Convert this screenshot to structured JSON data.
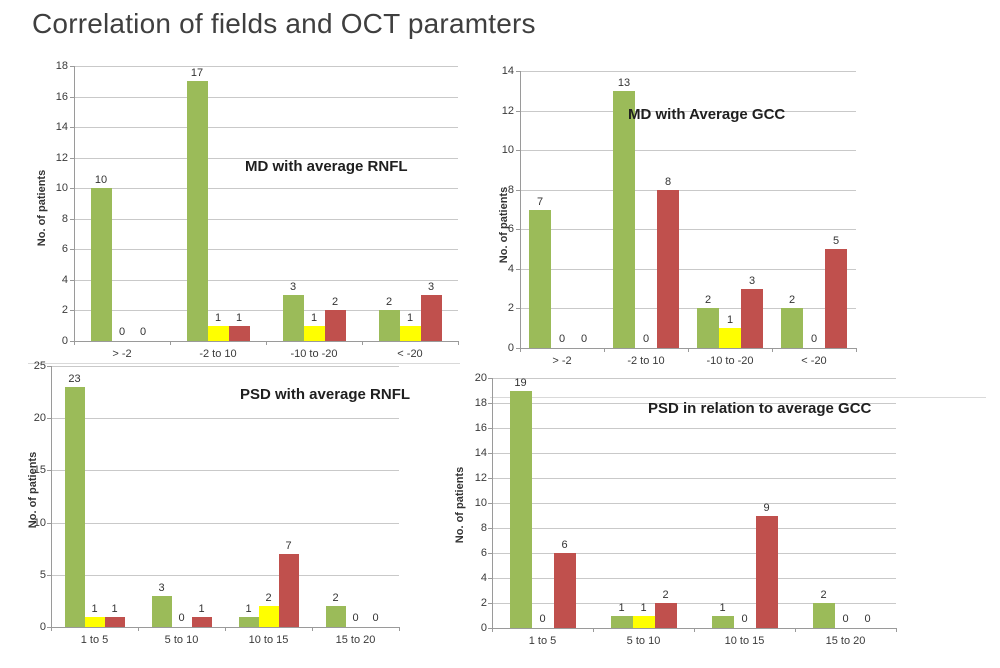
{
  "slide_title": "Correlation of fields and OCT paramters",
  "colors": {
    "green": "#9BBB59",
    "yellow": "#FFFF00",
    "red": "#C0504D",
    "gridline": "#C9C9C9",
    "axis": "#9A9A9A",
    "title_text": "#3F3F3F"
  },
  "chart_data": [
    {
      "id": "md-avg-rnfl",
      "type": "bar",
      "title": "MD with average RNFL",
      "ylabel": "No. of patients",
      "ylim": [
        0,
        18
      ],
      "ystep": 2,
      "grid": true,
      "legend": "none",
      "categories": [
        "> -2",
        "-2 to 10",
        "-10 to -20",
        "< -20"
      ],
      "series": [
        {
          "name": "green",
          "color": "#9BBB59",
          "values": [
            10,
            17,
            3,
            2
          ]
        },
        {
          "name": "yellow",
          "color": "#FFFF00",
          "values": [
            0,
            1,
            1,
            1
          ]
        },
        {
          "name": "red",
          "color": "#C0504D",
          "values": [
            0,
            1,
            2,
            3
          ]
        }
      ]
    },
    {
      "id": "md-avg-gcc",
      "type": "bar",
      "title": "MD  with Average GCC",
      "ylabel": "No. of patients",
      "ylim": [
        0,
        14
      ],
      "ystep": 2,
      "grid": true,
      "legend": "none",
      "categories": [
        "> -2",
        "-2 to 10",
        "-10 to -20",
        "< -20"
      ],
      "series": [
        {
          "name": "green",
          "color": "#9BBB59",
          "values": [
            7,
            13,
            2,
            2
          ]
        },
        {
          "name": "yellow",
          "color": "#FFFF00",
          "values": [
            0,
            0,
            1,
            0
          ]
        },
        {
          "name": "red",
          "color": "#C0504D",
          "values": [
            0,
            8,
            3,
            5
          ]
        }
      ]
    },
    {
      "id": "psd-avg-rnfl",
      "type": "bar",
      "title": "PSD with average RNFL",
      "ylabel": "No. of patients",
      "ylim": [
        0,
        25
      ],
      "ystep": 5,
      "grid": true,
      "legend": "none",
      "categories": [
        "1 to 5",
        "5 to 10",
        "10 to 15",
        "15 to 20"
      ],
      "series": [
        {
          "name": "green",
          "color": "#9BBB59",
          "values": [
            23,
            3,
            1,
            2
          ]
        },
        {
          "name": "yellow",
          "color": "#FFFF00",
          "values": [
            1,
            0,
            2,
            0
          ]
        },
        {
          "name": "red",
          "color": "#C0504D",
          "values": [
            1,
            1,
            7,
            0
          ]
        }
      ]
    },
    {
      "id": "psd-avg-gcc",
      "type": "bar",
      "title": "PSD in relation  to average GCC",
      "ylabel": "No. of patients",
      "ylim": [
        0,
        20
      ],
      "ystep": 2,
      "grid": true,
      "legend": "none",
      "categories": [
        "1 to 5",
        "5 to 10",
        "10 to 15",
        "15 to 20"
      ],
      "series": [
        {
          "name": "green",
          "color": "#9BBB59",
          "values": [
            19,
            1,
            1,
            2
          ]
        },
        {
          "name": "yellow",
          "color": "#FFFF00",
          "values": [
            0,
            1,
            0,
            0
          ]
        },
        {
          "name": "red",
          "color": "#C0504D",
          "values": [
            6,
            2,
            9,
            0
          ]
        }
      ]
    }
  ]
}
